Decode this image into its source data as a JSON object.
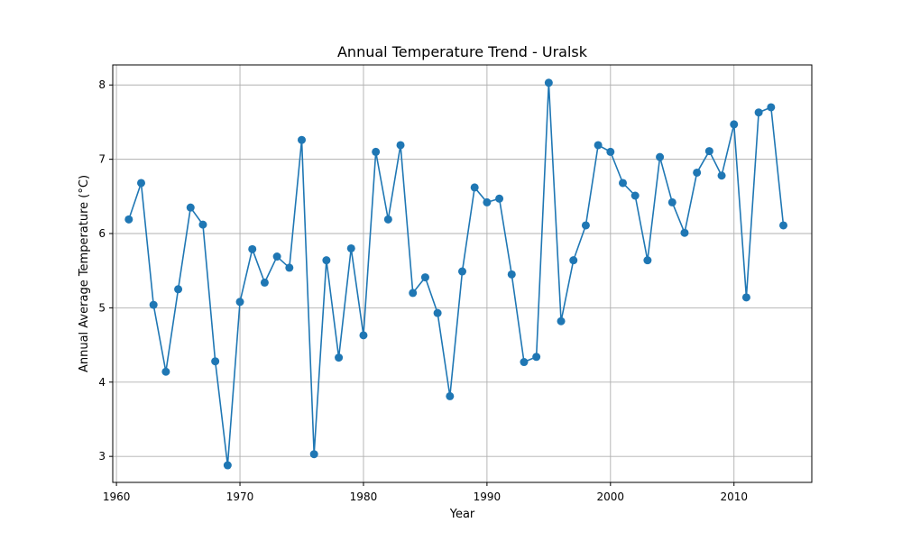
{
  "chart_data": {
    "type": "line",
    "title": "Annual Temperature Trend - Uralsk",
    "xlabel": "Year",
    "ylabel": "Annual Average Temperature (°C)",
    "xlim": [
      1959.7,
      2016.3
    ],
    "ylim": [
      2.65,
      8.27
    ],
    "xticks": [
      1960,
      1970,
      1980,
      1990,
      2000,
      2010
    ],
    "yticks": [
      3,
      4,
      5,
      6,
      7,
      8
    ],
    "grid": true,
    "color": "#1f77b4",
    "marker": "circle",
    "series": [
      {
        "x": [
          1961,
          1962,
          1963,
          1964,
          1965,
          1966,
          1967,
          1968,
          1969,
          1970,
          1971,
          1972,
          1973,
          1974,
          1975,
          1976,
          1977,
          1978,
          1979,
          1980,
          1981,
          1982,
          1983,
          1984,
          1985,
          1986,
          1987,
          1988,
          1989,
          1990,
          1991,
          1992,
          1993,
          1994,
          1995,
          1996,
          1997,
          1998,
          1999,
          2000,
          2001,
          2002,
          2003,
          2004,
          2005,
          2006,
          2007,
          2008,
          2009,
          2010,
          2011,
          2012,
          2013,
          2014
        ],
        "y": [
          6.19,
          6.68,
          5.04,
          4.14,
          5.25,
          6.35,
          6.12,
          4.28,
          2.88,
          5.08,
          5.79,
          5.34,
          5.69,
          5.54,
          7.26,
          3.03,
          5.64,
          4.33,
          5.8,
          4.63,
          7.1,
          6.19,
          7.19,
          5.2,
          5.41,
          4.93,
          3.81,
          5.49,
          6.62,
          6.42,
          6.47,
          5.45,
          4.27,
          4.34,
          8.03,
          4.82,
          5.64,
          6.11,
          7.19,
          7.1,
          6.68,
          6.51,
          5.64,
          7.03,
          6.42,
          6.01,
          6.82,
          7.11,
          6.78,
          7.47,
          5.14,
          7.63,
          7.7,
          6.11
        ]
      }
    ]
  }
}
